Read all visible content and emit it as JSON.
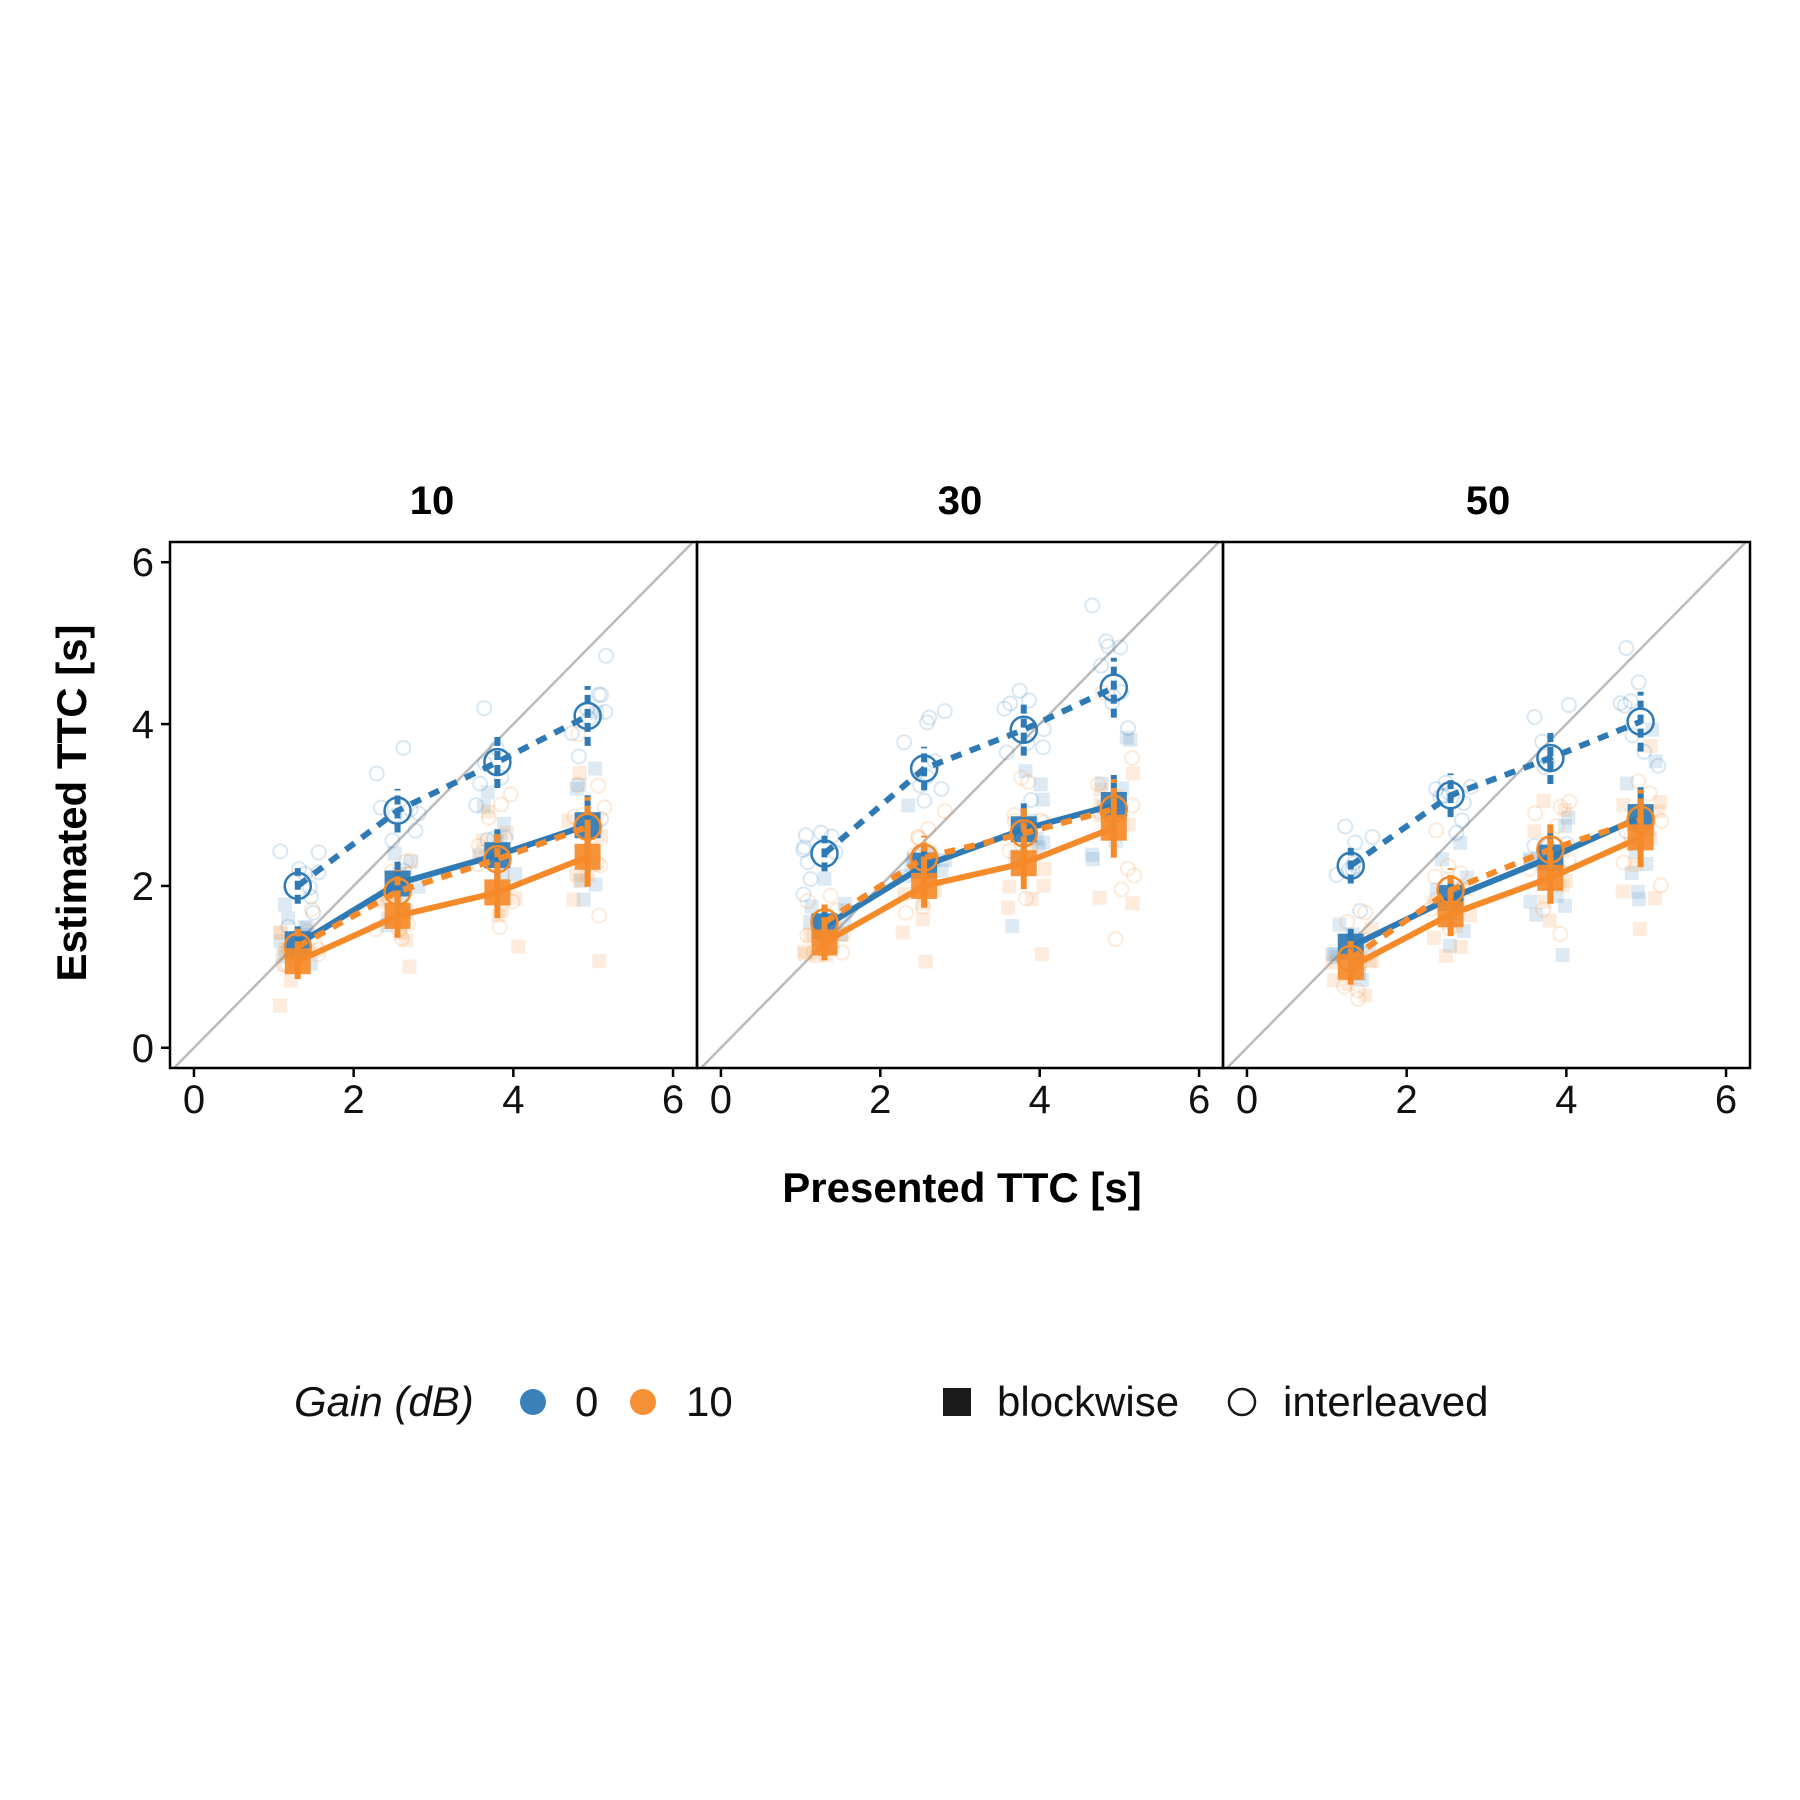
{
  "chart_data": {
    "type": "line",
    "facets": [
      "10",
      "30",
      "50"
    ],
    "xlabel": "Presented TTC [s]",
    "ylabel": "Estimated TTC [s]",
    "xlim": [
      -0.3,
      6.3
    ],
    "ylim": [
      -0.25,
      6.25
    ],
    "xticks": [
      0,
      2,
      4,
      6
    ],
    "yticks": [
      0,
      2,
      4,
      6
    ],
    "x": [
      1.3,
      2.55,
      3.8,
      4.93
    ],
    "identity_line": true,
    "grid": false,
    "legend_position": "bottom",
    "colors": {
      "gain_0": "#2f7ab5",
      "gain_10": "#f58a2a",
      "identity": "#bbbbbb"
    },
    "legend": {
      "gain_title": "Gain (dB)",
      "gain_levels": [
        "0",
        "10"
      ],
      "shape_levels": [
        "blockwise",
        "interleaved"
      ]
    },
    "panels": [
      {
        "facet": "10",
        "series": [
          {
            "gain": "0",
            "mode": "blockwise",
            "y": [
              1.28,
              2.03,
              2.38,
              2.75
            ]
          },
          {
            "gain": "10",
            "mode": "blockwise",
            "y": [
              1.07,
              1.63,
              1.92,
              2.36
            ]
          },
          {
            "gain": "0",
            "mode": "interleaved",
            "y": [
              2.0,
              2.93,
              3.53,
              4.1
            ]
          },
          {
            "gain": "10",
            "mode": "interleaved",
            "y": [
              1.25,
              1.93,
              2.33,
              2.73
            ]
          }
        ]
      },
      {
        "facet": "30",
        "series": [
          {
            "gain": "0",
            "mode": "blockwise",
            "y": [
              1.5,
              2.25,
              2.7,
              3.0
            ]
          },
          {
            "gain": "10",
            "mode": "blockwise",
            "y": [
              1.3,
              2.0,
              2.28,
              2.72
            ]
          },
          {
            "gain": "0",
            "mode": "interleaved",
            "y": [
              2.4,
              3.45,
              3.93,
              4.45
            ]
          },
          {
            "gain": "10",
            "mode": "interleaved",
            "y": [
              1.55,
              2.35,
              2.65,
              2.95
            ]
          }
        ]
      },
      {
        "facet": "50",
        "series": [
          {
            "gain": "0",
            "mode": "blockwise",
            "y": [
              1.25,
              1.85,
              2.35,
              2.85
            ]
          },
          {
            "gain": "10",
            "mode": "blockwise",
            "y": [
              1.0,
              1.65,
              2.1,
              2.6
            ]
          },
          {
            "gain": "0",
            "mode": "interleaved",
            "y": [
              2.25,
              3.12,
              3.58,
              4.03
            ]
          },
          {
            "gain": "10",
            "mode": "interleaved",
            "y": [
              1.1,
              1.95,
              2.45,
              2.82
            ]
          }
        ]
      }
    ]
  }
}
